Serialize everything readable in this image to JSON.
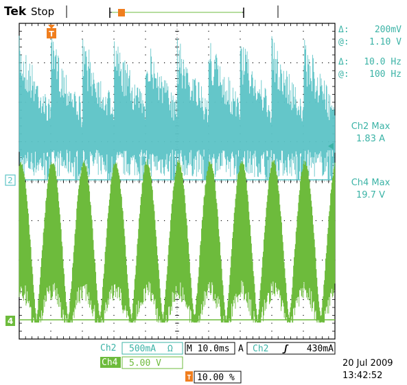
{
  "header": {
    "brand": "Tek",
    "status": "Stop",
    "trigger_marker": "T"
  },
  "colors": {
    "ch2": "#5cc3c6",
    "ch4": "#6dbb3c",
    "trigger": "#f07e1e",
    "readout": "#3bb3a6",
    "grid": "#000000"
  },
  "cursor_readout": {
    "amp_delta_symbol": "Δ:",
    "amp_delta": "200mV",
    "amp_at_symbol": "@:",
    "amp_at": "1.10 V",
    "freq_delta_symbol": "Δ:",
    "freq_delta": "10.0 Hz",
    "freq_at_symbol": "@:",
    "freq_at": "100 Hz"
  },
  "measurements": {
    "ch2_label": "Ch2 Max",
    "ch2_value": "1.83 A",
    "ch4_label": "Ch4 Max",
    "ch4_value": "19.7 V"
  },
  "channel_markers": {
    "ch2": "2",
    "ch4": "4"
  },
  "bottom_bar": {
    "ch2_name": "Ch2",
    "ch2_scale": "500mA",
    "ch2_unit": "Ω",
    "timebase": "M 10.0ms",
    "acq_mode": "A",
    "trig_source": "Ch2",
    "trig_slope": "ʃ",
    "trig_level": "430mA",
    "ch4_name": "Ch4",
    "ch4_scale": "5.00 V",
    "trig_pos_marker": "T",
    "trig_pos": "10.00 %"
  },
  "timestamp": {
    "date": "20 Jul 2009",
    "time": "13:42:52"
  }
}
